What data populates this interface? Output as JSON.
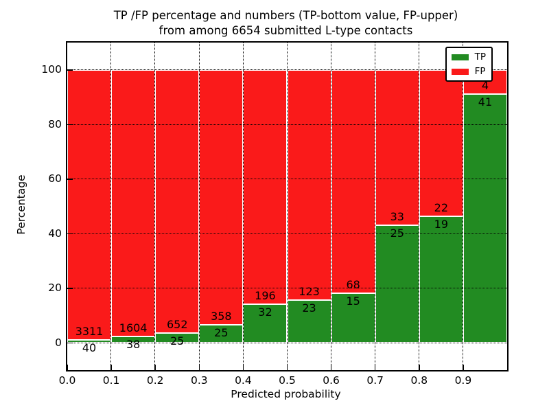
{
  "title": {
    "line1": "TP /FP percentage and numbers (TP-bottom value, FP-upper)",
    "line2": "from among 6654 submitted L-type contacts"
  },
  "chart_data": {
    "type": "bar",
    "stacked": true,
    "orientation": "vertical",
    "title": "TP /FP percentage and numbers (TP-bottom value, FP-upper) from among 6654 submitted L-type contacts",
    "xlabel": "Predicted probability",
    "ylabel": "Percentage",
    "total_contacts": 6654,
    "bin_starts": [
      0.0,
      0.1,
      0.2,
      0.3,
      0.4,
      0.5,
      0.6,
      0.7,
      0.8,
      0.9
    ],
    "bar_width": 0.1,
    "series": [
      {
        "name": "TP",
        "color": "#228B22",
        "counts": [
          40,
          38,
          25,
          25,
          32,
          23,
          15,
          25,
          19,
          41
        ]
      },
      {
        "name": "FP",
        "color": "#FA1A1A",
        "counts": [
          3311,
          1604,
          652,
          358,
          196,
          123,
          68,
          33,
          22,
          4
        ]
      }
    ],
    "tp_percent_approx": [
      1.19,
      2.31,
      3.69,
      6.53,
      14.04,
      15.75,
      18.07,
      43.1,
      46.34,
      91.11
    ],
    "bars_sum_to": 100,
    "x_tick_labels": [
      "0.0",
      "0.1",
      "0.2",
      "0.3",
      "0.4",
      "0.5",
      "0.6",
      "0.7",
      "0.8",
      "0.9"
    ],
    "y_tick_values": [
      0,
      20,
      40,
      60,
      80,
      100
    ],
    "xlim": [
      0.0,
      1.0
    ],
    "ylim": [
      -10,
      110
    ],
    "grid": "dotted, both axes, drawn over bars",
    "legend": {
      "position": "upper right",
      "entries": [
        {
          "label": "TP",
          "color": "#228B22"
        },
        {
          "label": "FP",
          "color": "#FA1A1A"
        }
      ]
    }
  },
  "colors": {
    "tp_green": "#228B22",
    "fp_red": "#FA1A1A",
    "background": "#FFFFFF",
    "text": "#000000",
    "bar_edge": "#FFFFFF"
  }
}
